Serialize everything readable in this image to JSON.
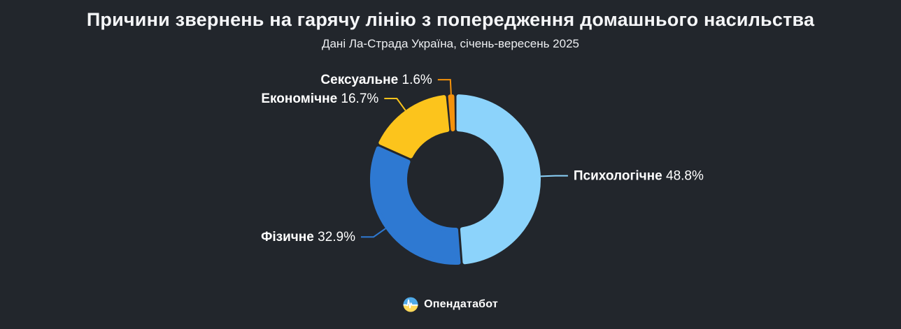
{
  "page": {
    "title": "Причини звернень на гарячу лінію з попередження домашнього насильства",
    "subtitle": "Дані Ла-Страда Україна, січень-вересень 2025",
    "background": "#22262C"
  },
  "chart_data": {
    "type": "pie",
    "variant": "donut",
    "title": "Причини звернень на гарячу лінію з попередження домашнього насильства",
    "subtitle": "Дані Ла-Страда Україна, січень-вересень 2025",
    "unit": "%",
    "categories": [
      "Психологічне",
      "Фізичне",
      "Економічне",
      "Сексуальне"
    ],
    "values": [
      48.8,
      32.9,
      16.7,
      1.6
    ],
    "colors": [
      "#8CD3FB",
      "#2E79D2",
      "#FCC41C",
      "#F5920B"
    ],
    "label_format": "{category} {value}%",
    "label_text_color": "#FFFFFF",
    "start_angle_deg": 0,
    "direction": "clockwise",
    "inner_radius_ratio": 0.6,
    "legend": "none",
    "labels_placement": "outside with leader lines colored by slice"
  },
  "footer": {
    "brand": "Опендатабот"
  },
  "logo_icon": {
    "name": "opendatabot-logo",
    "top_color": "#4FA9E8",
    "bottom_color": "#FFD95A",
    "pulse_color": "#FFFFFF"
  }
}
